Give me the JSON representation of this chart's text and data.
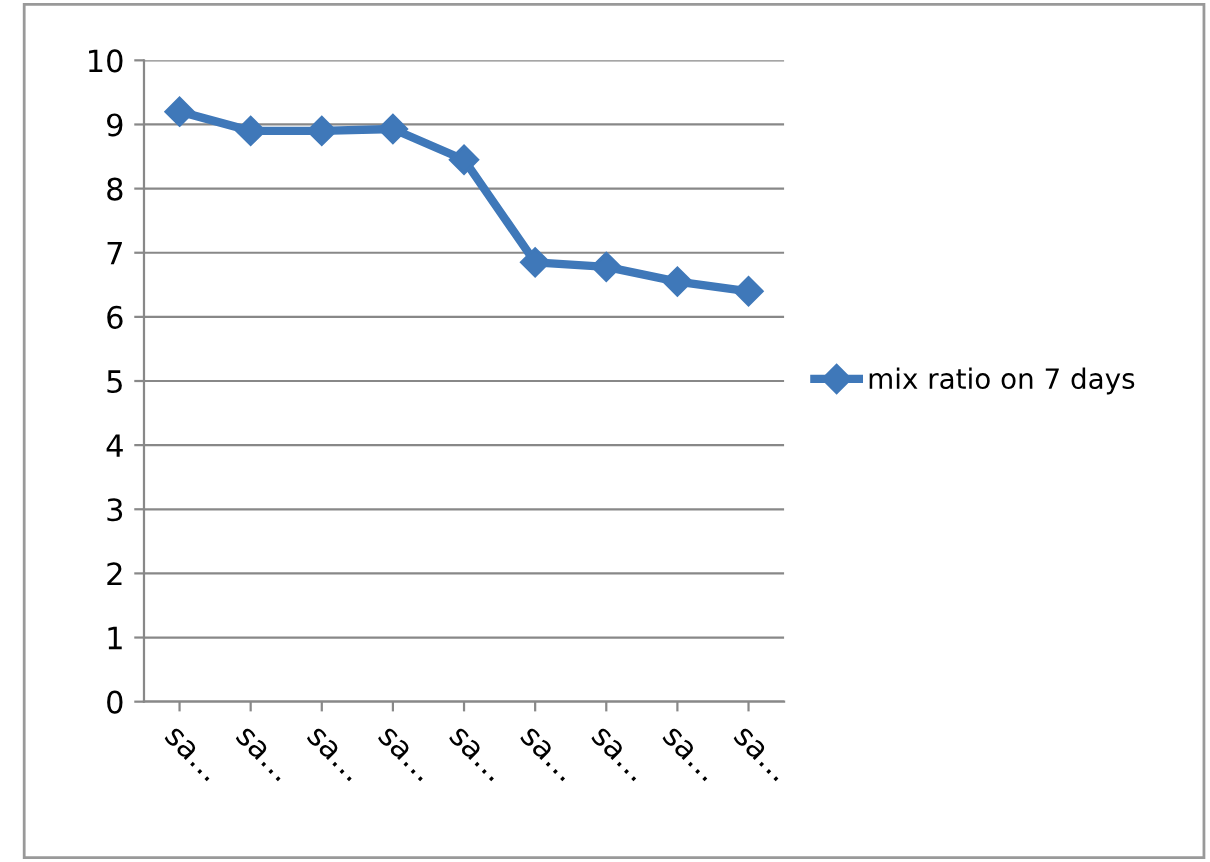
{
  "chart_data": {
    "type": "line",
    "categories": [
      "sa…",
      "sa…",
      "sa…",
      "sa…",
      "sa…",
      "sa…",
      "sa…",
      "sa…",
      "sa…"
    ],
    "series": [
      {
        "name": "mix ratio on 7 days",
        "color": "#3f78b9",
        "values": [
          9.2,
          8.9,
          8.9,
          8.93,
          8.45,
          6.85,
          6.78,
          6.55,
          6.4
        ]
      }
    ],
    "ylim": [
      0,
      10
    ],
    "yticks": [
      0,
      1,
      2,
      3,
      4,
      5,
      6,
      7,
      8,
      9,
      10
    ],
    "grid": "y",
    "legend": "right",
    "marker": "diamond",
    "line_style": "solid"
  }
}
